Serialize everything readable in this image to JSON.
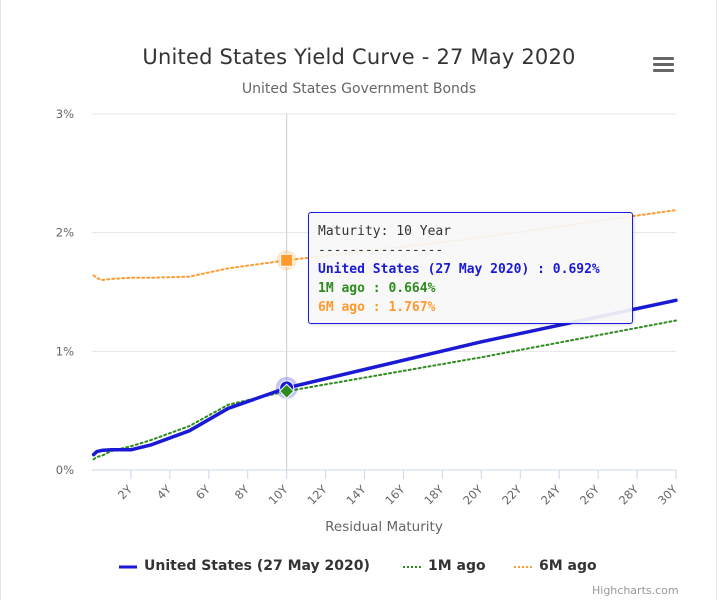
{
  "title": "United States Yield Curve - 27 May 2020",
  "subtitle": "United States Government Bonds",
  "credits": "Highcharts.com",
  "menu_icon": "hamburger-menu-icon",
  "chart_data": {
    "type": "line",
    "xlabel": "Residual Maturity",
    "ylabel": "",
    "xlim": [
      0,
      30
    ],
    "ylim": [
      0,
      3
    ],
    "x_ticks": [
      "2Y",
      "4Y",
      "6Y",
      "8Y",
      "10Y",
      "12Y",
      "14Y",
      "16Y",
      "18Y",
      "20Y",
      "22Y",
      "24Y",
      "26Y",
      "28Y",
      "30Y"
    ],
    "y_ticks": [
      "0%",
      "1%",
      "2%",
      "3%"
    ],
    "grid": true,
    "legend_position": "bottom",
    "series": [
      {
        "name": "United States (27 May 2020)",
        "color": "#1a1ad6",
        "style": "solid",
        "x": [
          0.083,
          0.25,
          0.5,
          1,
          2,
          3,
          5,
          7,
          10,
          20,
          30
        ],
        "y": [
          0.13,
          0.155,
          0.165,
          0.17,
          0.17,
          0.21,
          0.33,
          0.52,
          0.692,
          1.08,
          1.43
        ]
      },
      {
        "name": "1M ago",
        "color": "#2e8b1e",
        "style": "dotted",
        "x": [
          0.083,
          0.25,
          0.5,
          1,
          2,
          3,
          5,
          7,
          10,
          20,
          30
        ],
        "y": [
          0.09,
          0.11,
          0.12,
          0.16,
          0.2,
          0.25,
          0.37,
          0.55,
          0.664,
          0.95,
          1.26
        ]
      },
      {
        "name": "6M ago",
        "color": "#ff9a2e",
        "style": "dotted",
        "x": [
          0.083,
          0.25,
          0.5,
          1,
          2,
          3,
          5,
          7,
          10,
          20,
          30
        ],
        "y": [
          1.64,
          1.62,
          1.6,
          1.61,
          1.62,
          1.62,
          1.63,
          1.7,
          1.767,
          1.96,
          2.19
        ]
      }
    ]
  },
  "tooltip": {
    "heading": "Maturity: 10 Year",
    "separator": "----------------",
    "line_us": "United States (27 May 2020) : 0.692%",
    "line_1m": "1M ago : 0.664%",
    "line_6m": "6M ago : 1.767%"
  }
}
